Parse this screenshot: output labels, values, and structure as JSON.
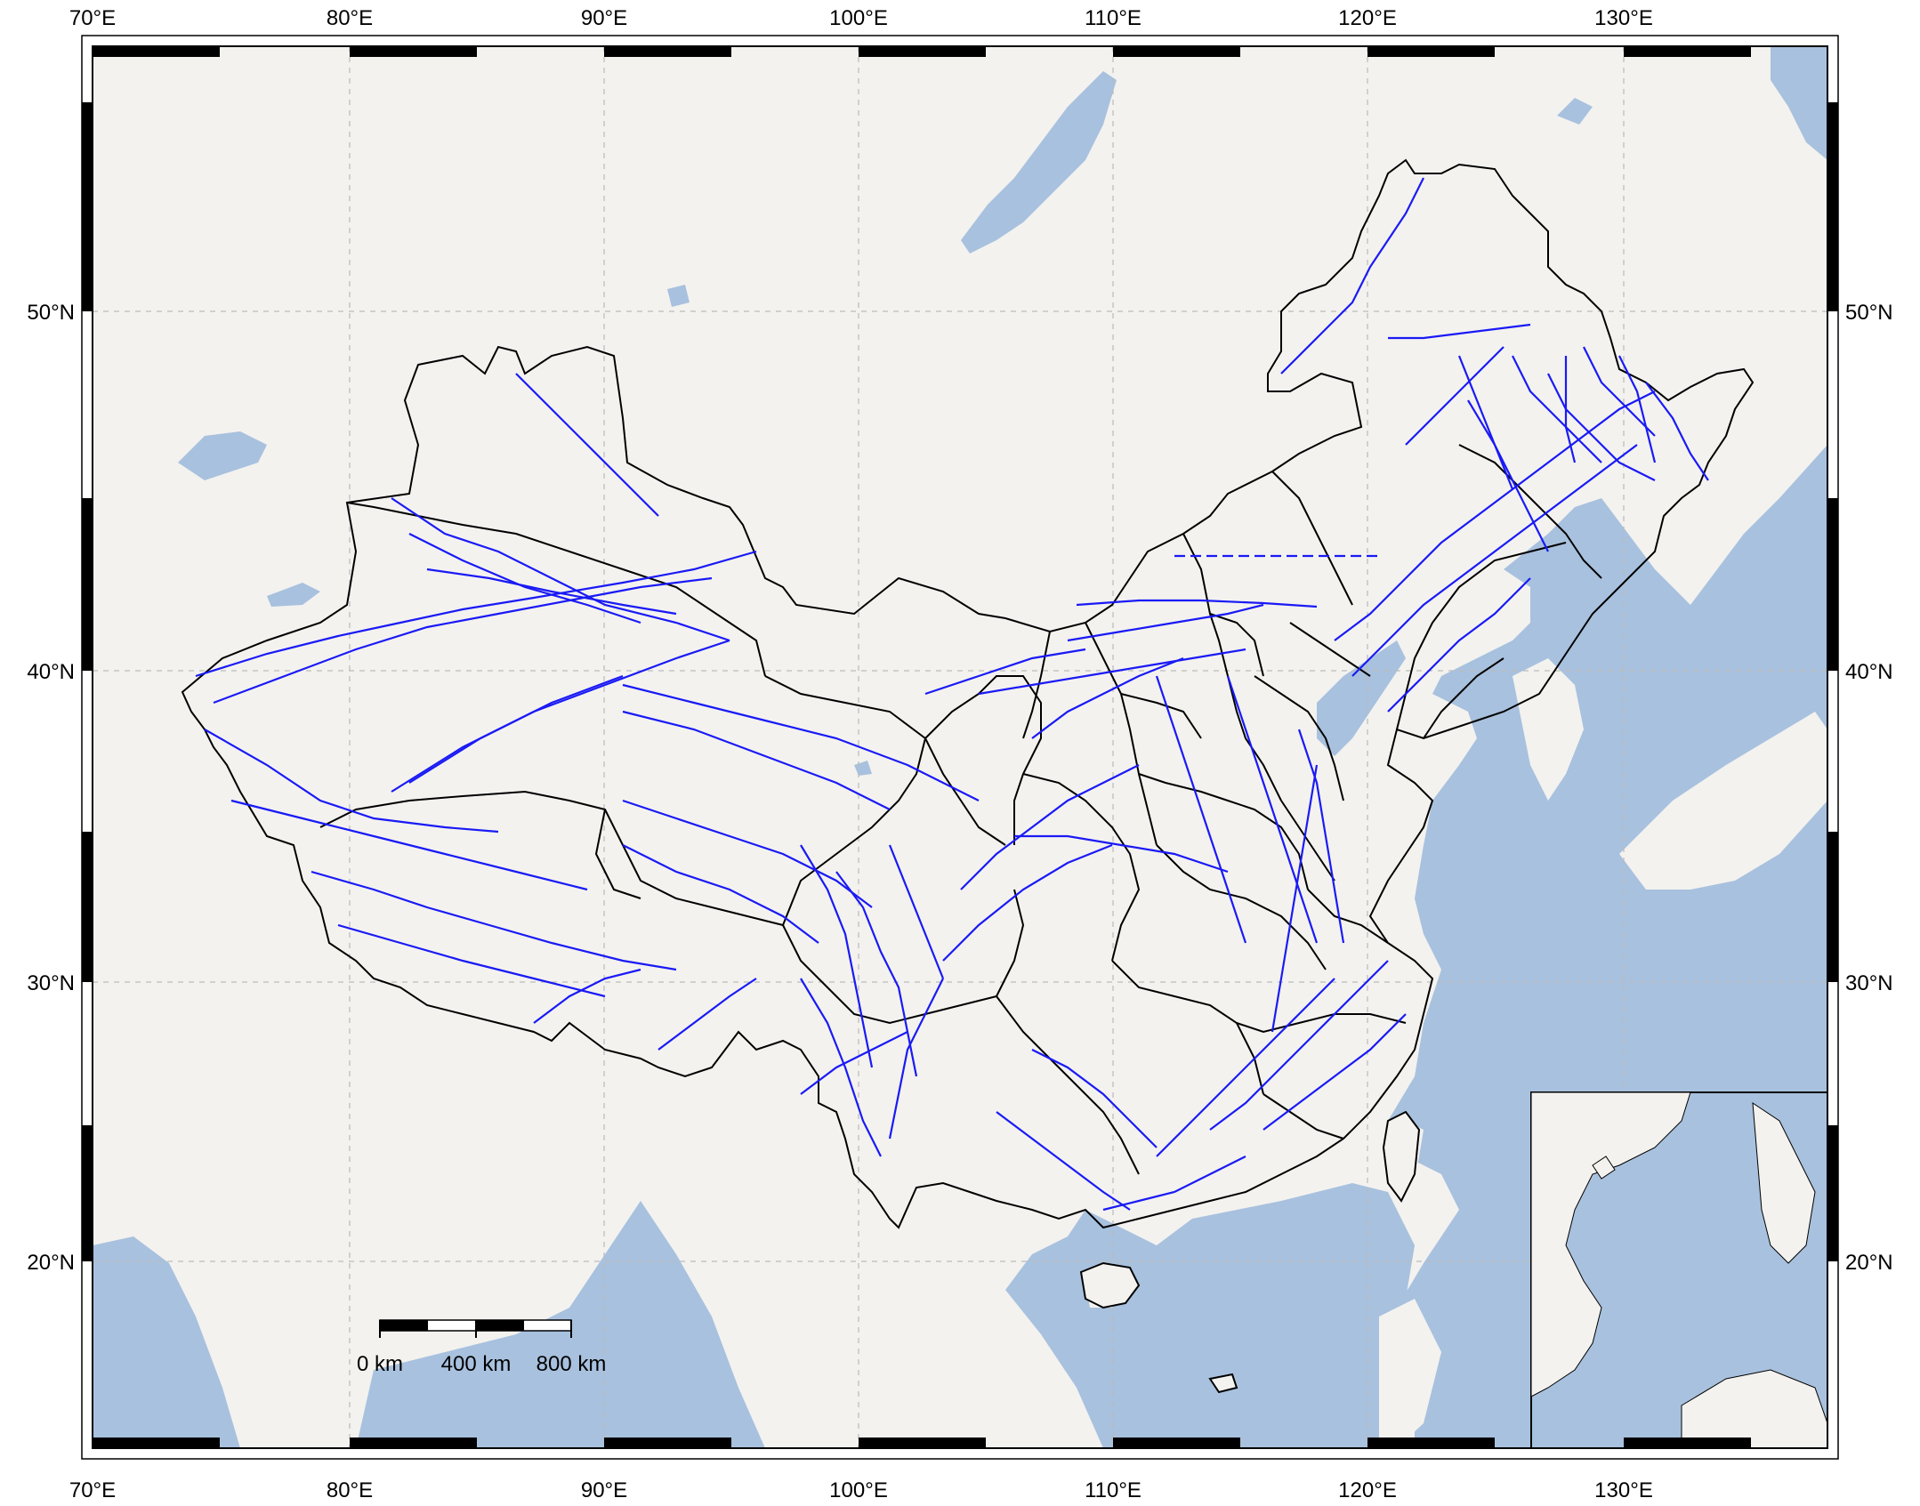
{
  "map": {
    "lon_labels": [
      "70°E",
      "80°E",
      "90°E",
      "100°E",
      "110°E",
      "120°E",
      "130°E"
    ],
    "lat_labels": [
      "20°N",
      "30°N",
      "40°N",
      "50°N"
    ],
    "lon_range": [
      70,
      138
    ],
    "lat_range": [
      13.5,
      58.5
    ],
    "graticule": "dashed",
    "frame": "black-and-white fancy border",
    "colors": {
      "land": "#f3f2ef",
      "water": "#a8c1de",
      "province_borders": "#000000",
      "faults": "#1a1af5"
    }
  },
  "scale_bar": {
    "labels": [
      "0 km",
      "400 km",
      "800 km"
    ]
  },
  "inset": {
    "description_visible": false
  }
}
